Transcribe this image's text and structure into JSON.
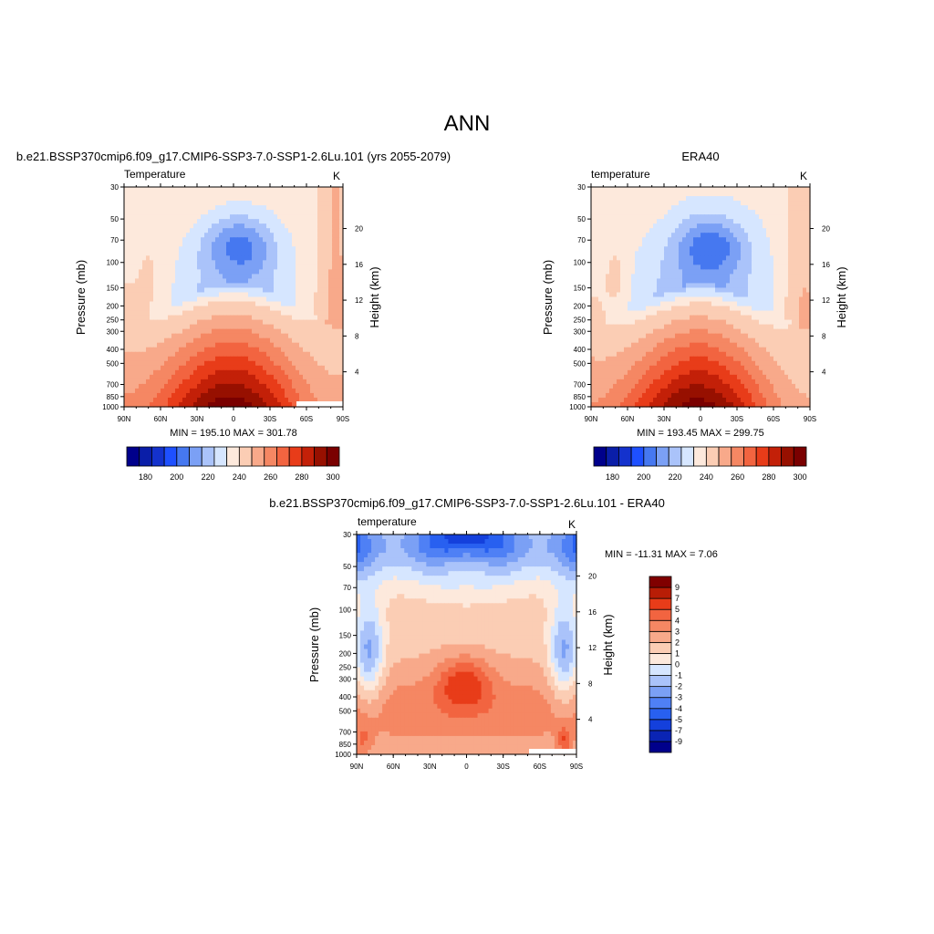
{
  "figure": {
    "title": "ANN"
  },
  "palette": {
    "cool": [
      "#00008b",
      "#0a1ea8",
      "#1432cd",
      "#1e50ff",
      "#4678f0",
      "#7ba0f5",
      "#aac3fa",
      "#d6e6ff"
    ],
    "warm": [
      "#fde9dc",
      "#fbcdb4",
      "#f8a98a",
      "#f58763",
      "#f26440",
      "#e83c19",
      "#c32008",
      "#971000",
      "#7a0000"
    ],
    "missing": "#ffffff"
  },
  "chart_data": [
    {
      "type": "heatmap",
      "panel_title": "b.e21.BSSP370cmip6.f09_g17.CMIP6-SSP3-7.0-SSP1-2.6Lu.101 (yrs 2055-2079)",
      "variable_label": "Temperature",
      "units": "K",
      "ylabel": "Pressure (mb)",
      "y2label": "Height (km)",
      "xticks": [
        "90N",
        "60N",
        "30N",
        "0",
        "30S",
        "60S",
        "90S"
      ],
      "pressure_ticks": [
        30,
        50,
        70,
        100,
        150,
        200,
        250,
        300,
        400,
        500,
        700,
        850,
        1000
      ],
      "height_ticks": [
        4,
        8,
        12,
        16,
        20
      ],
      "stats": "MIN = 195.10  MAX = 301.78",
      "colorbar": {
        "orientation": "horizontal",
        "labels": [
          "180",
          "190",
          "200",
          "210",
          "220",
          "230",
          "240",
          "250",
          "260",
          "270",
          "280",
          "290",
          "300"
        ],
        "label_every": 2
      },
      "levels": [
        180,
        185,
        190,
        195,
        200,
        205,
        210,
        215,
        220,
        230,
        240,
        250,
        260,
        270,
        280,
        290,
        300
      ],
      "field": {
        "t0": 298,
        "trop": 208,
        "minT": 196,
        "minLat": -5,
        "strat": 217,
        "south_cap": 229,
        "north_patch": 224
      }
    },
    {
      "type": "heatmap",
      "panel_title": "ERA40",
      "variable_label": "temperature",
      "units": "K",
      "ylabel": "Pressure (mb)",
      "y2label": "Height (km)",
      "xticks": [
        "90N",
        "60N",
        "30N",
        "0",
        "30S",
        "60S",
        "90S"
      ],
      "pressure_ticks": [
        30,
        50,
        70,
        100,
        150,
        200,
        250,
        300,
        400,
        500,
        700,
        850,
        1000
      ],
      "height_ticks": [
        4,
        8,
        12,
        16,
        20
      ],
      "stats": "MIN = 193.45  MAX = 299.75",
      "colorbar": {
        "orientation": "horizontal",
        "labels": [
          "180",
          "190",
          "200",
          "210",
          "220",
          "230",
          "240",
          "250",
          "260",
          "270",
          "280",
          "290",
          "300"
        ],
        "label_every": 2
      },
      "levels": [
        180,
        185,
        190,
        195,
        200,
        205,
        210,
        215,
        220,
        230,
        240,
        250,
        260,
        270,
        280,
        290,
        300
      ],
      "field": {
        "t0": 296,
        "trop": 206,
        "minT": 194,
        "minLat": -8,
        "strat": 216,
        "south_cap": 226,
        "north_patch": 228
      }
    },
    {
      "type": "heatmap",
      "panel_title": "b.e21.BSSP370cmip6.f09_g17.CMIP6-SSP3-7.0-SSP1-2.6Lu.101 - ERA40",
      "variable_label": "temperature",
      "units": "K",
      "ylabel": "Pressure (mb)",
      "y2label": "Height (km)",
      "xticks": [
        "90N",
        "60N",
        "30N",
        "0",
        "30S",
        "60S",
        "90S"
      ],
      "pressure_ticks": [
        30,
        50,
        70,
        100,
        150,
        200,
        250,
        300,
        400,
        500,
        700,
        850,
        1000
      ],
      "height_ticks": [
        4,
        8,
        12,
        16,
        20
      ],
      "stats": "MIN = -11.31  MAX =   7.06",
      "colorbar": {
        "orientation": "vertical",
        "labels": [
          "9",
          "7",
          "5",
          "4",
          "3",
          "2",
          "1",
          "0",
          "-1",
          "-2",
          "-3",
          "-4",
          "-5",
          "-7",
          "-9"
        ]
      },
      "levels": [
        -9,
        -7,
        -5,
        -4,
        -3,
        -2,
        -1,
        0,
        1,
        2,
        3,
        4,
        5,
        7,
        9
      ]
    }
  ]
}
